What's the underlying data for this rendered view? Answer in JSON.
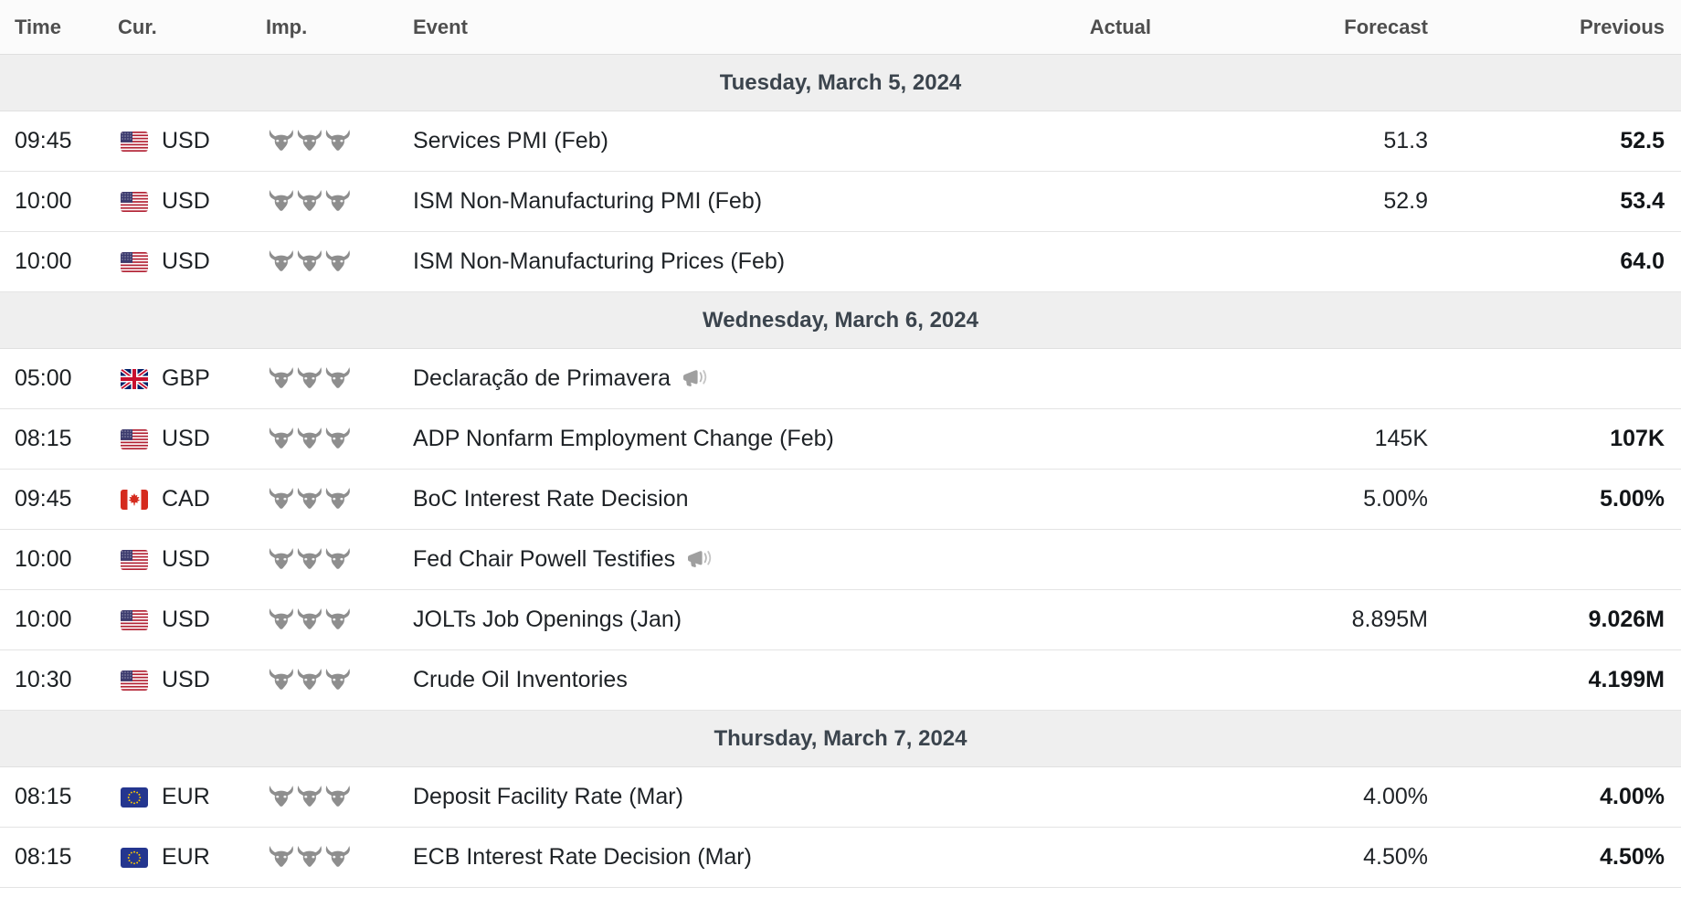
{
  "table": {
    "columns": [
      "Time",
      "Cur.",
      "Imp.",
      "Event",
      "Actual",
      "Forecast",
      "Previous"
    ],
    "sections": [
      {
        "date": "Tuesday, March 5, 2024",
        "events": [
          {
            "time": "09:45",
            "currency": "USD",
            "flag": "us",
            "importance": 3,
            "name": "Services PMI (Feb)",
            "speech": false,
            "actual": "",
            "forecast": "51.3",
            "previous": "52.5"
          },
          {
            "time": "10:00",
            "currency": "USD",
            "flag": "us",
            "importance": 3,
            "name": "ISM Non-Manufacturing PMI (Feb)",
            "speech": false,
            "actual": "",
            "forecast": "52.9",
            "previous": "53.4"
          },
          {
            "time": "10:00",
            "currency": "USD",
            "flag": "us",
            "importance": 3,
            "name": "ISM Non-Manufacturing Prices (Feb)",
            "speech": false,
            "actual": "",
            "forecast": "",
            "previous": "64.0"
          }
        ]
      },
      {
        "date": "Wednesday, March 6, 2024",
        "events": [
          {
            "time": "05:00",
            "currency": "GBP",
            "flag": "uk",
            "importance": 3,
            "name": "Declaração de Primavera",
            "speech": true,
            "actual": "",
            "forecast": "",
            "previous": ""
          },
          {
            "time": "08:15",
            "currency": "USD",
            "flag": "us",
            "importance": 3,
            "name": "ADP Nonfarm Employment Change (Feb)",
            "speech": false,
            "actual": "",
            "forecast": "145K",
            "previous": "107K"
          },
          {
            "time": "09:45",
            "currency": "CAD",
            "flag": "canada",
            "importance": 3,
            "name": "BoC Interest Rate Decision",
            "speech": false,
            "actual": "",
            "forecast": "5.00%",
            "previous": "5.00%"
          },
          {
            "time": "10:00",
            "currency": "USD",
            "flag": "us",
            "importance": 3,
            "name": "Fed Chair Powell Testifies",
            "speech": true,
            "actual": "",
            "forecast": "",
            "previous": ""
          },
          {
            "time": "10:00",
            "currency": "USD",
            "flag": "us",
            "importance": 3,
            "name": "JOLTs Job Openings (Jan)",
            "speech": false,
            "actual": "",
            "forecast": "8.895M",
            "previous": "9.026M"
          },
          {
            "time": "10:30",
            "currency": "USD",
            "flag": "us",
            "importance": 3,
            "name": "Crude Oil Inventories",
            "speech": false,
            "actual": "",
            "forecast": "",
            "previous": "4.199M"
          }
        ]
      },
      {
        "date": "Thursday, March 7, 2024",
        "events": [
          {
            "time": "08:15",
            "currency": "EUR",
            "flag": "eu",
            "importance": 3,
            "name": "Deposit Facility Rate (Mar)",
            "speech": false,
            "actual": "",
            "forecast": "4.00%",
            "previous": "4.00%"
          },
          {
            "time": "08:15",
            "currency": "EUR",
            "flag": "eu",
            "importance": 3,
            "name": "ECB Interest Rate Decision (Mar)",
            "speech": false,
            "actual": "",
            "forecast": "4.50%",
            "previous": "4.50%"
          }
        ]
      }
    ]
  },
  "icons": {
    "importance_icon": "bull-icon",
    "audio_icon": "megaphone-icon",
    "flag_icons": {
      "USD": "us-flag-icon",
      "GBP": "uk-flag-icon",
      "CAD": "canada-flag-icon",
      "EUR": "eu-flag-icon"
    }
  },
  "colors": {
    "header_bg": "#fbfbfb",
    "header_text": "#4e4e4e",
    "date_band_bg": "#efefef",
    "date_band_text": "#3b444d",
    "row_border": "#e4e4e4",
    "row_text": "#1e2226",
    "bull_gray": "#8e8e8e",
    "us_flag_red": "#b22234",
    "us_flag_blue": "#3c3b6e",
    "uk_flag_blue": "#012169",
    "uk_flag_red": "#c8102e",
    "canada_flag_red": "#d52b1e",
    "eu_flag_blue": "#24368f",
    "eu_flag_stars": "#ffcc00"
  }
}
